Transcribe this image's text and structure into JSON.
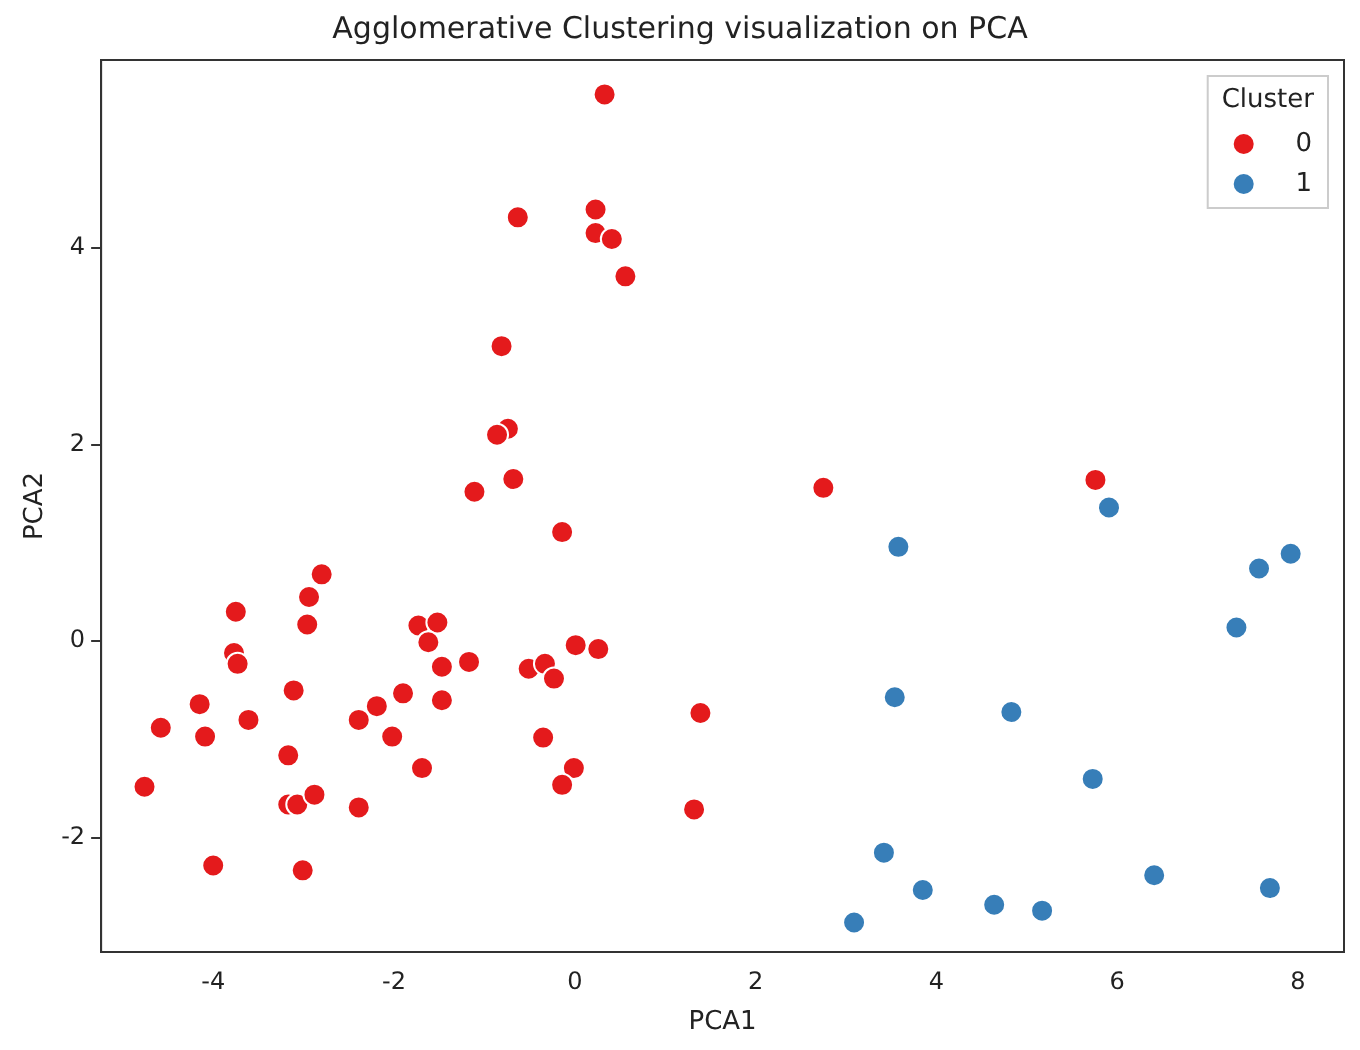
{
  "chart_data": {
    "type": "scatter",
    "title": "Agglomerative Clustering visualization on PCA",
    "xlabel": "PCA1",
    "ylabel": "PCA2",
    "legend_title": "Cluster",
    "legend": "top right",
    "grid": false,
    "marker": "circle",
    "xlim": [
      -5.24,
      8.51
    ],
    "ylim": [
      -3.16,
      5.91
    ],
    "xticks": [
      -4,
      -2,
      0,
      2,
      4,
      6,
      8
    ],
    "yticks": [
      -2,
      0,
      2,
      4
    ],
    "series": [
      {
        "name": "0",
        "color": "#e41a1c",
        "x": [
          0.33,
          -0.63,
          0.23,
          0.23,
          0.41,
          0.56,
          -0.81,
          -0.74,
          -0.86,
          -0.68,
          -1.11,
          -0.14,
          2.75,
          5.76,
          -2.8,
          -2.94,
          -3.75,
          -2.96,
          -3.77,
          -3.73,
          -4.15,
          -4.58,
          -4.09,
          -3.61,
          -3.11,
          -4.76,
          -3.17,
          -3.17,
          -3.07,
          -2.88,
          -4.0,
          -3.01,
          -2.39,
          -2.39,
          -2.19,
          -1.9,
          -2.02,
          -1.69,
          -1.73,
          -1.52,
          -1.62,
          -1.47,
          -1.47,
          -1.17,
          -0.51,
          -0.33,
          -0.23,
          0.01,
          0.26,
          -0.35,
          -0.01,
          -0.14,
          1.39,
          1.32
        ],
        "values": [
          5.56,
          4.31,
          4.39,
          4.15,
          4.09,
          3.71,
          3.0,
          2.16,
          2.1,
          1.65,
          1.52,
          1.11,
          1.56,
          1.64,
          0.68,
          0.45,
          0.3,
          0.17,
          -0.12,
          -0.23,
          -0.64,
          -0.88,
          -0.97,
          -0.8,
          -0.5,
          -1.48,
          -1.16,
          -1.66,
          -1.66,
          -1.56,
          -2.28,
          -2.33,
          -1.69,
          -0.8,
          -0.66,
          -0.53,
          -0.97,
          -1.29,
          0.16,
          0.19,
          -0.01,
          -0.26,
          -0.6,
          -0.21,
          -0.28,
          -0.23,
          -0.38,
          -0.04,
          -0.08,
          -0.98,
          -1.29,
          -1.46,
          -0.73,
          -1.71
        ]
      },
      {
        "name": "1",
        "color": "#377eb8",
        "x": [
          5.91,
          3.58,
          7.92,
          7.57,
          7.32,
          3.54,
          4.83,
          5.73,
          3.42,
          3.85,
          6.41,
          7.69,
          4.64,
          5.17,
          3.09
        ],
        "values": [
          1.36,
          0.96,
          0.89,
          0.74,
          0.14,
          -0.57,
          -0.72,
          -1.4,
          -2.15,
          -2.53,
          -2.38,
          -2.51,
          -2.68,
          -2.74,
          -2.86
        ]
      }
    ]
  }
}
